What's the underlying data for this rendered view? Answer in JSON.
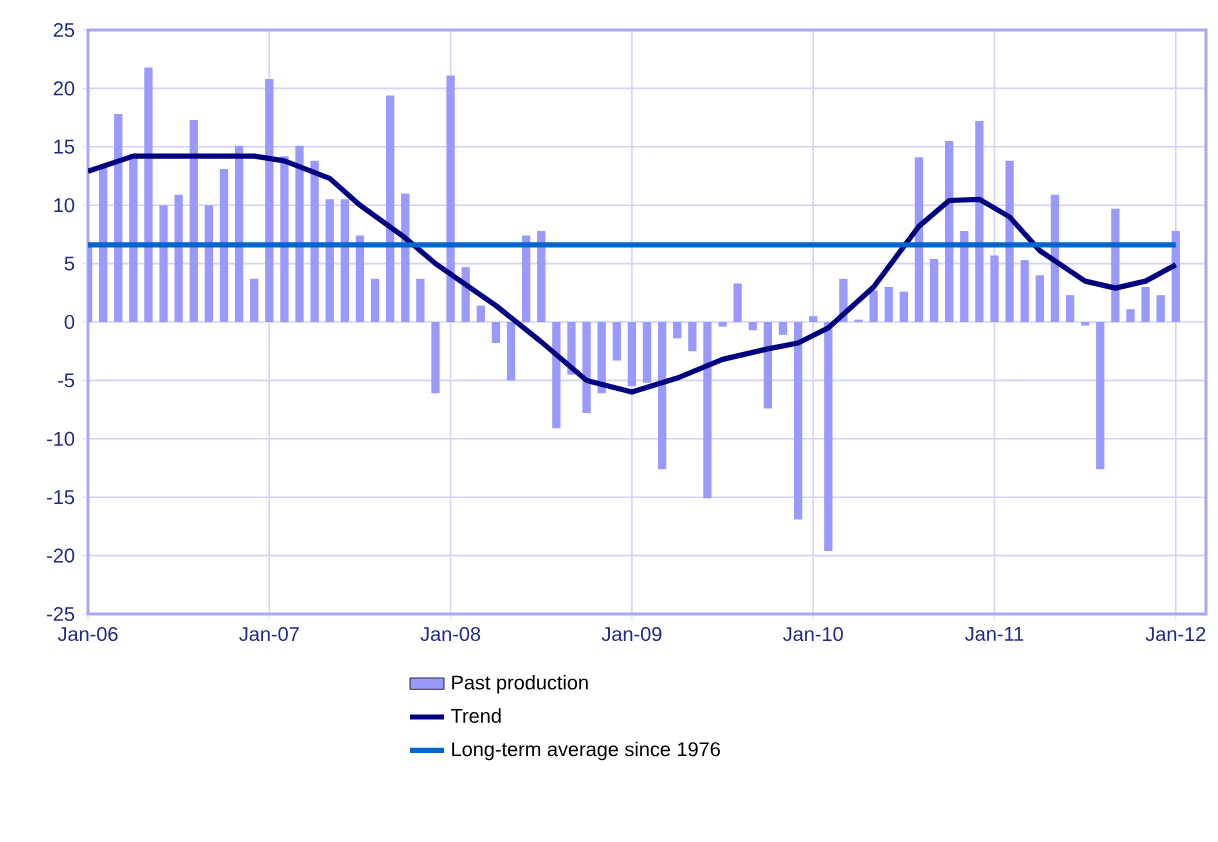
{
  "chart_data": {
    "type": "bar",
    "x": [
      "2006-01",
      "2006-02",
      "2006-03",
      "2006-04",
      "2006-05",
      "2006-06",
      "2006-07",
      "2006-08",
      "2006-09",
      "2006-10",
      "2006-11",
      "2006-12",
      "2007-01",
      "2007-02",
      "2007-03",
      "2007-04",
      "2007-05",
      "2007-06",
      "2007-07",
      "2007-08",
      "2007-09",
      "2007-10",
      "2007-11",
      "2007-12",
      "2008-01",
      "2008-02",
      "2008-03",
      "2008-04",
      "2008-05",
      "2008-06",
      "2008-07",
      "2008-08",
      "2008-09",
      "2008-10",
      "2008-11",
      "2008-12",
      "2009-01",
      "2009-02",
      "2009-03",
      "2009-04",
      "2009-05",
      "2009-06",
      "2009-07",
      "2009-08",
      "2009-09",
      "2009-10",
      "2009-11",
      "2009-12",
      "2010-01",
      "2010-02",
      "2010-03",
      "2010-04",
      "2010-05",
      "2010-06",
      "2010-07",
      "2010-08",
      "2010-09",
      "2010-10",
      "2010-11",
      "2010-12",
      "2011-01",
      "2011-02",
      "2011-03",
      "2011-04",
      "2011-05",
      "2011-06",
      "2011-07",
      "2011-08",
      "2011-09",
      "2011-10",
      "2011-11",
      "2011-12",
      "2012-01"
    ],
    "series": [
      {
        "name": "Past production",
        "color": "#9999ff",
        "values": [
          6.7,
          13.3,
          17.8,
          14.4,
          21.8,
          10,
          10.9,
          17.3,
          10,
          13.1,
          15.1,
          3.7,
          20.8,
          14.2,
          15.1,
          13.8,
          10.5,
          10.5,
          7.4,
          3.7,
          19.4,
          11,
          3.7,
          -6.1,
          21.1,
          4.7,
          1.4,
          -1.8,
          -5.0,
          7.4,
          7.8,
          -9.1,
          -4.5,
          -7.8,
          -6.1,
          -3.3,
          -5.5,
          -5.2,
          -12.6,
          -1.4,
          -2.5,
          -15.1,
          -0.4,
          3.3,
          -0.7,
          -7.4,
          -1.1,
          -16.9,
          0.5,
          -19.6,
          3.7,
          0.2,
          2.7,
          3.0,
          2.6,
          14.1,
          5.4,
          15.5,
          7.8,
          17.2,
          5.7,
          13.8,
          5.3,
          4.0,
          10.9,
          2.3,
          -0.3,
          -12.6,
          9.7,
          1.1,
          3.0,
          2.3,
          7.8
        ]
      },
      {
        "name": "Trend",
        "type": "line",
        "color": "#000080",
        "x": [
          "2006-01",
          "2006-04",
          "2006-12",
          "2007-02",
          "2007-05",
          "2007-07",
          "2007-10",
          "2007-12",
          "2008-04",
          "2008-07",
          "2008-10",
          "2009-01",
          "2009-04",
          "2009-07",
          "2009-10",
          "2009-12",
          "2010-02",
          "2010-05",
          "2010-08",
          "2010-10",
          "2010-12",
          "2011-02",
          "2011-04",
          "2011-07",
          "2011-09",
          "2011-11",
          "2012-01"
        ],
        "values": [
          12.9,
          14.2,
          14.2,
          13.8,
          12.3,
          10.0,
          7.2,
          5.0,
          1.4,
          -1.7,
          -5.0,
          -6.0,
          -4.8,
          -3.2,
          -2.3,
          -1.8,
          -0.5,
          3.0,
          8.2,
          10.4,
          10.5,
          9.0,
          6.1,
          3.5,
          2.9,
          3.5,
          4.9
        ]
      },
      {
        "name": "Long-term average since 1976",
        "type": "line",
        "color": "#0066cc",
        "x": [
          "2006-01",
          "2012-01"
        ],
        "values": [
          6.6,
          6.6
        ]
      }
    ],
    "xlim": [
      "2006-01",
      "2012-03"
    ],
    "xticks": [
      {
        "value": "2006-01",
        "label": "Jan-06"
      },
      {
        "value": "2007-01",
        "label": "Jan-07"
      },
      {
        "value": "2008-01",
        "label": "Jan-08"
      },
      {
        "value": "2009-01",
        "label": "Jan-09"
      },
      {
        "value": "2010-01",
        "label": "Jan-10"
      },
      {
        "value": "2011-01",
        "label": "Jan-11"
      },
      {
        "value": "2012-01",
        "label": "Jan-12"
      }
    ],
    "ylim": [
      -25,
      25
    ],
    "yticks": [
      -25,
      -20,
      -15,
      -10,
      -5,
      0,
      5,
      10,
      15,
      20,
      25
    ],
    "grid": true,
    "legend": "bottom",
    "line_style": "solid",
    "marker": "none"
  }
}
